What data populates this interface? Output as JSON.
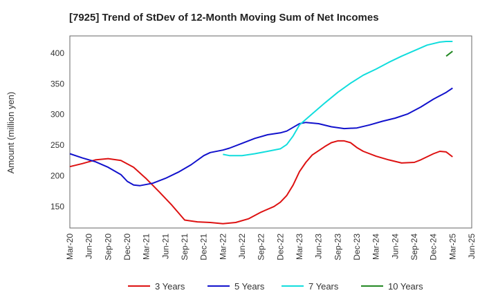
{
  "chart_data": {
    "type": "line",
    "title": "[7925]  Trend of StDev of 12-Month Moving Sum of Net Incomes",
    "ylabel": "Amount (million yen)",
    "xlabel": "",
    "ylim": [
      115,
      428
    ],
    "yticks": [
      150,
      200,
      250,
      300,
      350,
      400
    ],
    "x_tick_labels": [
      "Mar-20",
      "Jun-20",
      "Sep-20",
      "Dec-20",
      "Mar-21",
      "Jun-21",
      "Sep-21",
      "Dec-21",
      "Mar-22",
      "Jun-22",
      "Sep-22",
      "Dec-22",
      "Mar-23",
      "Jun-23",
      "Sep-23",
      "Dec-23",
      "Mar-24",
      "Jun-24",
      "Sep-24",
      "Dec-24",
      "Mar-25",
      "Jun-25"
    ],
    "grid": true,
    "legend_position": "bottom",
    "series": [
      {
        "name": "3 Years",
        "color": "#dd1111",
        "points": [
          [
            "Mar-20",
            215
          ],
          [
            "May-20",
            220
          ],
          [
            "Jul-20",
            226
          ],
          [
            "Sep-20",
            228
          ],
          [
            "Nov-20",
            225
          ],
          [
            "Jan-21",
            214
          ],
          [
            "Mar-21",
            195
          ],
          [
            "May-21",
            174
          ],
          [
            "Jul-21",
            152
          ],
          [
            "Sep-21",
            128
          ],
          [
            "Nov-21",
            125
          ],
          [
            "Jan-22",
            124
          ],
          [
            "Mar-22",
            122
          ],
          [
            "May-22",
            124
          ],
          [
            "Jul-22",
            130
          ],
          [
            "Sep-22",
            141
          ],
          [
            "Nov-22",
            150
          ],
          [
            "Dec-22",
            157
          ],
          [
            "Jan-23",
            168
          ],
          [
            "Feb-23",
            185
          ],
          [
            "Mar-23",
            207
          ],
          [
            "Apr-23",
            222
          ],
          [
            "May-23",
            234
          ],
          [
            "Jul-23",
            248
          ],
          [
            "Aug-23",
            254
          ],
          [
            "Sep-23",
            257
          ],
          [
            "Oct-23",
            257
          ],
          [
            "Nov-23",
            254
          ],
          [
            "Dec-23",
            246
          ],
          [
            "Jan-24",
            240
          ],
          [
            "Mar-24",
            232
          ],
          [
            "May-24",
            226
          ],
          [
            "Jul-24",
            221
          ],
          [
            "Sep-24",
            222
          ],
          [
            "Oct-24",
            226
          ],
          [
            "Dec-24",
            236
          ],
          [
            "Jan-25",
            240
          ],
          [
            "Feb-25",
            239
          ],
          [
            "Mar-25",
            231
          ]
        ]
      },
      {
        "name": "5 Years",
        "color": "#1111cc",
        "points": [
          [
            "Mar-20",
            236
          ],
          [
            "May-20",
            229
          ],
          [
            "Jul-20",
            223
          ],
          [
            "Sep-20",
            214
          ],
          [
            "Nov-20",
            202
          ],
          [
            "Dec-20",
            191
          ],
          [
            "Jan-21",
            185
          ],
          [
            "Feb-21",
            184
          ],
          [
            "Apr-21",
            188
          ],
          [
            "Jun-21",
            196
          ],
          [
            "Aug-21",
            206
          ],
          [
            "Oct-21",
            218
          ],
          [
            "Dec-21",
            233
          ],
          [
            "Jan-22",
            238
          ],
          [
            "Mar-22",
            242
          ],
          [
            "Apr-22",
            245
          ],
          [
            "Jun-22",
            253
          ],
          [
            "Aug-22",
            261
          ],
          [
            "Oct-22",
            267
          ],
          [
            "Dec-22",
            270
          ],
          [
            "Jan-23",
            273
          ],
          [
            "Feb-23",
            279
          ],
          [
            "Mar-23",
            285
          ],
          [
            "Apr-23",
            287
          ],
          [
            "Jun-23",
            285
          ],
          [
            "Aug-23",
            280
          ],
          [
            "Oct-23",
            277
          ],
          [
            "Dec-23",
            278
          ],
          [
            "Feb-24",
            283
          ],
          [
            "Apr-24",
            289
          ],
          [
            "Jun-24",
            294
          ],
          [
            "Aug-24",
            301
          ],
          [
            "Oct-24",
            312
          ],
          [
            "Dec-24",
            325
          ],
          [
            "Feb-25",
            336
          ],
          [
            "Mar-25",
            343
          ]
        ]
      },
      {
        "name": "7 Years",
        "color": "#11dddd",
        "points": [
          [
            "Mar-22",
            235
          ],
          [
            "Apr-22",
            233
          ],
          [
            "Jun-22",
            233
          ],
          [
            "Aug-22",
            236
          ],
          [
            "Oct-22",
            240
          ],
          [
            "Dec-22",
            244
          ],
          [
            "Jan-23",
            251
          ],
          [
            "Feb-23",
            265
          ],
          [
            "Mar-23",
            283
          ],
          [
            "May-23",
            301
          ],
          [
            "Jul-23",
            319
          ],
          [
            "Sep-23",
            336
          ],
          [
            "Nov-23",
            351
          ],
          [
            "Jan-24",
            364
          ],
          [
            "Mar-24",
            374
          ],
          [
            "May-24",
            385
          ],
          [
            "Jul-24",
            395
          ],
          [
            "Sep-24",
            404
          ],
          [
            "Nov-24",
            413
          ],
          [
            "Jan-25",
            418
          ],
          [
            "Feb-25",
            419
          ],
          [
            "Mar-25",
            419
          ]
        ]
      },
      {
        "name": "10 Years",
        "color": "#228822",
        "points": [
          [
            "Feb-25",
            395
          ],
          [
            "Mar-25",
            403
          ]
        ]
      }
    ]
  }
}
